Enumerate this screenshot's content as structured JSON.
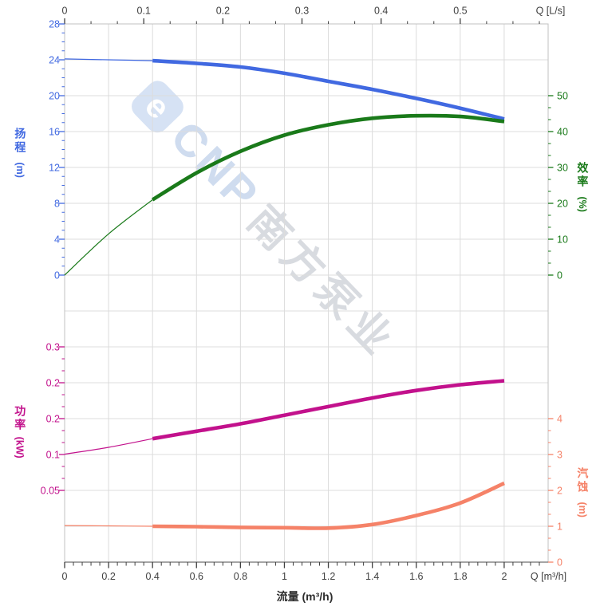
{
  "colors": {
    "head": "#4169e1",
    "efficiency": "#1a7a1a",
    "power": "#c2118c",
    "npsh": "#f58268",
    "grid": "#dcdcdc",
    "border": "#c2c2c2",
    "axis": "#3f3f3f"
  },
  "watermark": {
    "logo_letter": "e",
    "brand": "CNP",
    "brand_cn": "南方泵业"
  },
  "axes": {
    "top": {
      "unit_label": "Q [L/s]",
      "ticks": [
        "0",
        "0.1",
        "0.2",
        "0.3",
        "0.4",
        "0.5"
      ]
    },
    "bottom": {
      "unit_label": "Q [m³/h]",
      "title": "流量 (m³/h)",
      "ticks": [
        "0",
        "0.2",
        "0.4",
        "0.6",
        "0.8",
        "1",
        "1.2",
        "1.4",
        "1.6",
        "1.8",
        "2"
      ]
    },
    "head": {
      "title_cn": "扬程",
      "unit": "(m)",
      "ticks": [
        "28",
        "24",
        "20",
        "16",
        "12",
        "8",
        "4",
        "0"
      ]
    },
    "efficiency": {
      "title_cn": "效率",
      "unit": "(%)",
      "ticks": [
        "50",
        "40",
        "30",
        "20",
        "10",
        "0"
      ]
    },
    "power": {
      "title_cn": "功率",
      "unit": "(kW)",
      "ticks": [
        "0.3",
        "0.2",
        "0.2",
        "0.1",
        "0.05"
      ]
    },
    "npsh": {
      "title_cn": "汽蚀",
      "unit": "(m)",
      "ticks": [
        "4",
        "3",
        "2",
        "1",
        "0"
      ]
    }
  },
  "chart_data": {
    "type": "line",
    "x": [
      0,
      0.2,
      0.4,
      0.6,
      0.8,
      1,
      1.2,
      1.4,
      1.6,
      1.8,
      2
    ],
    "xlabel": "流量 (m³/h)",
    "xlabel_top": "Q [L/s]",
    "x_range": [
      0,
      2.2
    ],
    "top_axis_ticks_Ls": [
      0,
      0.1,
      0.2,
      0.3,
      0.4,
      0.5
    ],
    "grid": true,
    "thick_segment_x_range": [
      0.4,
      2
    ],
    "series": [
      {
        "name": "扬程 (Head)",
        "unit": "m",
        "yscale": "head",
        "color": "#4169e1",
        "ylim": [
          0,
          28
        ],
        "y_ticks": [
          28,
          24,
          20,
          16,
          12,
          8,
          4,
          0
        ],
        "values": [
          24.1,
          24,
          23.9,
          23.6,
          23.2,
          22.5,
          21.6,
          20.7,
          19.7,
          18.6,
          17.4
        ]
      },
      {
        "name": "效率 (Efficiency)",
        "unit": "%",
        "yscale": "efficiency",
        "color": "#1a7a1a",
        "ylim": [
          0,
          70
        ],
        "y_ticks": [
          50,
          40,
          30,
          20,
          10,
          0
        ],
        "values": [
          0,
          11.5,
          21,
          28.5,
          34.5,
          39,
          41.9,
          43.7,
          44.4,
          44.2,
          42.8
        ]
      },
      {
        "name": "功率 (Power)",
        "unit": "kW",
        "yscale": "power",
        "color": "#c2118c",
        "y_tick_labels_displayed": [
          "0.3",
          "0.2",
          "0.2",
          "0.1",
          "0.05"
        ],
        "values": [
          0.113,
          0.125,
          0.14,
          0.153,
          0.166,
          0.181,
          0.196,
          0.211,
          0.224,
          0.234,
          0.241
        ]
      },
      {
        "name": "汽蚀 (NPSH)",
        "unit": "m",
        "yscale": "npsh",
        "color": "#f58268",
        "ylim": [
          0,
          4
        ],
        "y_ticks": [
          4,
          3,
          2,
          1,
          0
        ],
        "values": [
          1.02,
          1.01,
          1,
          0.99,
          0.97,
          0.96,
          0.95,
          1.05,
          1.3,
          1.65,
          2.2
        ]
      }
    ]
  }
}
